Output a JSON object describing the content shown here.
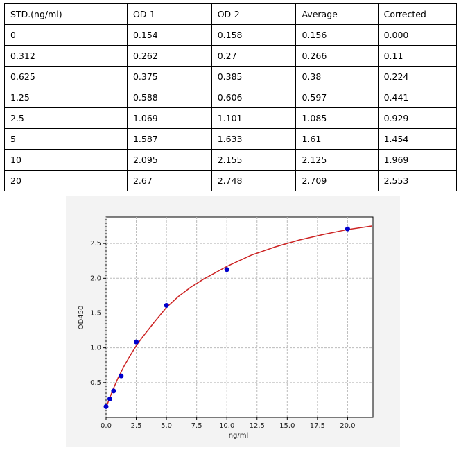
{
  "table": {
    "header": [
      "STD.(ng/ml)",
      "OD-1",
      "OD-2",
      "Average",
      "Corrected"
    ],
    "rows": [
      [
        "0",
        "0.154",
        "0.158",
        "0.156",
        "0.000"
      ],
      [
        "0.312",
        "0.262",
        "0.27",
        "0.266",
        "0.11"
      ],
      [
        "0.625",
        "0.375",
        "0.385",
        "0.38",
        "0.224"
      ],
      [
        "1.25",
        "0.588",
        "0.606",
        "0.597",
        "0.441"
      ],
      [
        "2.5",
        "1.069",
        "1.101",
        "1.085",
        "0.929"
      ],
      [
        "5",
        "1.587",
        "1.633",
        "1.61",
        "1.454"
      ],
      [
        "10",
        "2.095",
        "2.155",
        "2.125",
        "1.969"
      ],
      [
        "20",
        "2.67",
        "2.748",
        "2.709",
        "2.553"
      ]
    ]
  },
  "chart_data": {
    "type": "scatter",
    "xlabel": "ng/ml",
    "ylabel": "OD450",
    "xlim": [
      0,
      22.1
    ],
    "ylim": [
      0,
      2.88
    ],
    "grid": true,
    "xticks": [
      {
        "value": 0,
        "label": "0.0"
      },
      2.5,
      {
        "value": 5,
        "label": "5.0"
      },
      7.5,
      {
        "value": 10,
        "label": "10.0"
      },
      12.5,
      {
        "value": 15,
        "label": "15.0"
      },
      17.5,
      {
        "value": 20,
        "label": "20.0"
      }
    ],
    "yticks": [
      0.5,
      {
        "value": 1,
        "label": "1.0"
      },
      1.5,
      {
        "value": 2,
        "label": "2.0"
      },
      2.5
    ],
    "series": [
      {
        "color": "#0000cc",
        "style": "points",
        "x": [
          0,
          0.312,
          0.625,
          1.25,
          2.5,
          5,
          10,
          20
        ],
        "values": [
          0.156,
          0.266,
          0.38,
          0.597,
          1.085,
          1.61,
          2.125,
          2.709
        ]
      },
      {
        "color": "#cc2222",
        "style": "line",
        "x": [
          0,
          0.5,
          1,
          1.5,
          2,
          2.5,
          3,
          4,
          5,
          6,
          7,
          8,
          10,
          12,
          14,
          16,
          18,
          20,
          22
        ],
        "values": [
          0.14,
          0.37,
          0.57,
          0.74,
          0.89,
          1.03,
          1.15,
          1.37,
          1.58,
          1.74,
          1.87,
          1.98,
          2.17,
          2.33,
          2.45,
          2.55,
          2.63,
          2.7,
          2.75
        ]
      }
    ]
  }
}
